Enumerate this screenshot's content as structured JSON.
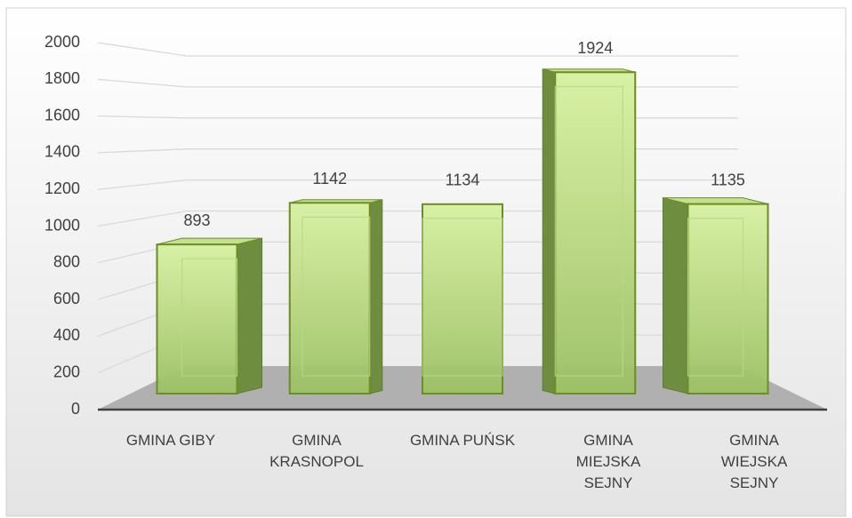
{
  "chart_data": {
    "type": "bar3d",
    "categories": [
      "GMINA GIBY",
      "GMINA KRASNOPOL",
      "GMINA PUŃSK",
      "GMINA MIEJSKA SEJNY",
      "GMINA WIEJSKA SEJNY"
    ],
    "values": [
      893,
      1142,
      1134,
      1924,
      1135
    ],
    "color": "#a9cf74",
    "ylim": [
      0,
      2000
    ],
    "yticks": [
      0,
      200,
      400,
      600,
      800,
      1000,
      1200,
      1400,
      1600,
      1800,
      2000
    ],
    "grid": true
  }
}
